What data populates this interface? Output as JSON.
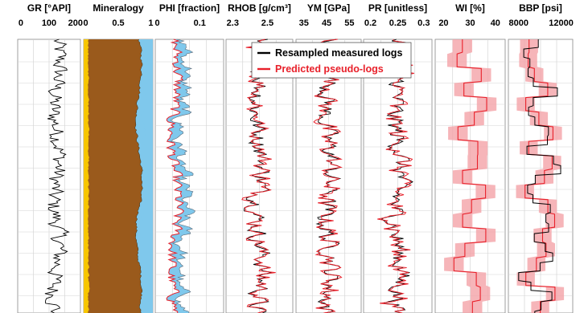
{
  "chart_data": {
    "type": "line",
    "legend": {
      "position": "top-center",
      "entries": [
        {
          "label": "Resampled measured logs",
          "color": "#000000"
        },
        {
          "label": "Predicted pseudo-logs",
          "color": "#e8202a"
        }
      ]
    },
    "depth_axis": {
      "inverted": true,
      "tick_labels_shown": false,
      "grid": true
    },
    "tracks": [
      {
        "key": "gr",
        "title": "GR [°API]",
        "ticks": [
          "0",
          "100",
          "200"
        ],
        "xlim": [
          0,
          200
        ],
        "series": [
          {
            "name": "Resampled measured logs",
            "color": "#000000",
            "range": [
              80,
              185
            ],
            "mean": 130
          }
        ]
      },
      {
        "key": "min",
        "title": "Mineralogy",
        "ticks": [
          "0",
          "0.5",
          "1"
        ],
        "xlim": [
          0,
          1
        ],
        "components": [
          {
            "color": "#f7c600",
            "boundary_mean": 0.07
          },
          {
            "color": "#9a5a1c",
            "boundary_mean": 0.82
          },
          {
            "color": "#7fc8ec",
            "boundary_mean": 0.93
          }
        ]
      },
      {
        "key": "phi",
        "title": "PHI [fraction]",
        "ticks": [
          "0",
          "0.1"
        ],
        "xlim": [
          0,
          0.15
        ],
        "series": [
          {
            "name": "Predicted pseudo-logs",
            "color": "#e8202a",
            "range": [
              0.01,
              0.09
            ],
            "mean": 0.04
          }
        ],
        "fill_color": "#7fc8ec"
      },
      {
        "key": "rhob",
        "title": "RHOB [g/cm³]",
        "ticks": [
          "2.3",
          "2.5"
        ],
        "xlim": [
          2.25,
          2.75
        ],
        "series": [
          {
            "name": "Resampled measured logs",
            "color": "#000000",
            "mean": 2.55
          },
          {
            "name": "Predicted pseudo-logs",
            "color": "#e8202a",
            "mean": 2.55
          }
        ]
      },
      {
        "key": "ym",
        "title": "YM [GPa]",
        "ticks": [
          "35",
          "45",
          "55"
        ],
        "xlim": [
          30,
          60
        ],
        "series": [
          {
            "name": "Resampled measured logs",
            "color": "#000000",
            "mean": 46
          },
          {
            "name": "Predicted pseudo-logs",
            "color": "#e8202a",
            "mean": 46
          }
        ]
      },
      {
        "key": "pr",
        "title": "PR [unitless]",
        "ticks": [
          "0.2",
          "0.25",
          "0.3"
        ],
        "xlim": [
          0.18,
          0.32
        ],
        "series": [
          {
            "name": "Resampled measured logs",
            "color": "#000000",
            "mean": 0.24
          },
          {
            "name": "Predicted pseudo-logs",
            "color": "#e8202a",
            "mean": 0.24
          }
        ]
      },
      {
        "key": "wi",
        "title": "WI [%]",
        "ticks": [
          "20",
          "30",
          "40"
        ],
        "xlim": [
          15,
          45
        ],
        "series": [
          {
            "name": "Predicted pseudo-logs",
            "color": "#e8202a",
            "mean": 30
          }
        ],
        "band_color": "#f4a3a7"
      },
      {
        "key": "bbp",
        "title": "BBP [psi]",
        "ticks": [
          "8000",
          "12000"
        ],
        "xlim": [
          8000,
          13000
        ],
        "series": [
          {
            "name": "Resampled measured logs",
            "color": "#000000",
            "mean": 10700
          },
          {
            "name": "Predicted pseudo-logs",
            "color": "#e8202a",
            "mean": 10700
          }
        ],
        "band_color": "#f4a3a7"
      }
    ]
  }
}
